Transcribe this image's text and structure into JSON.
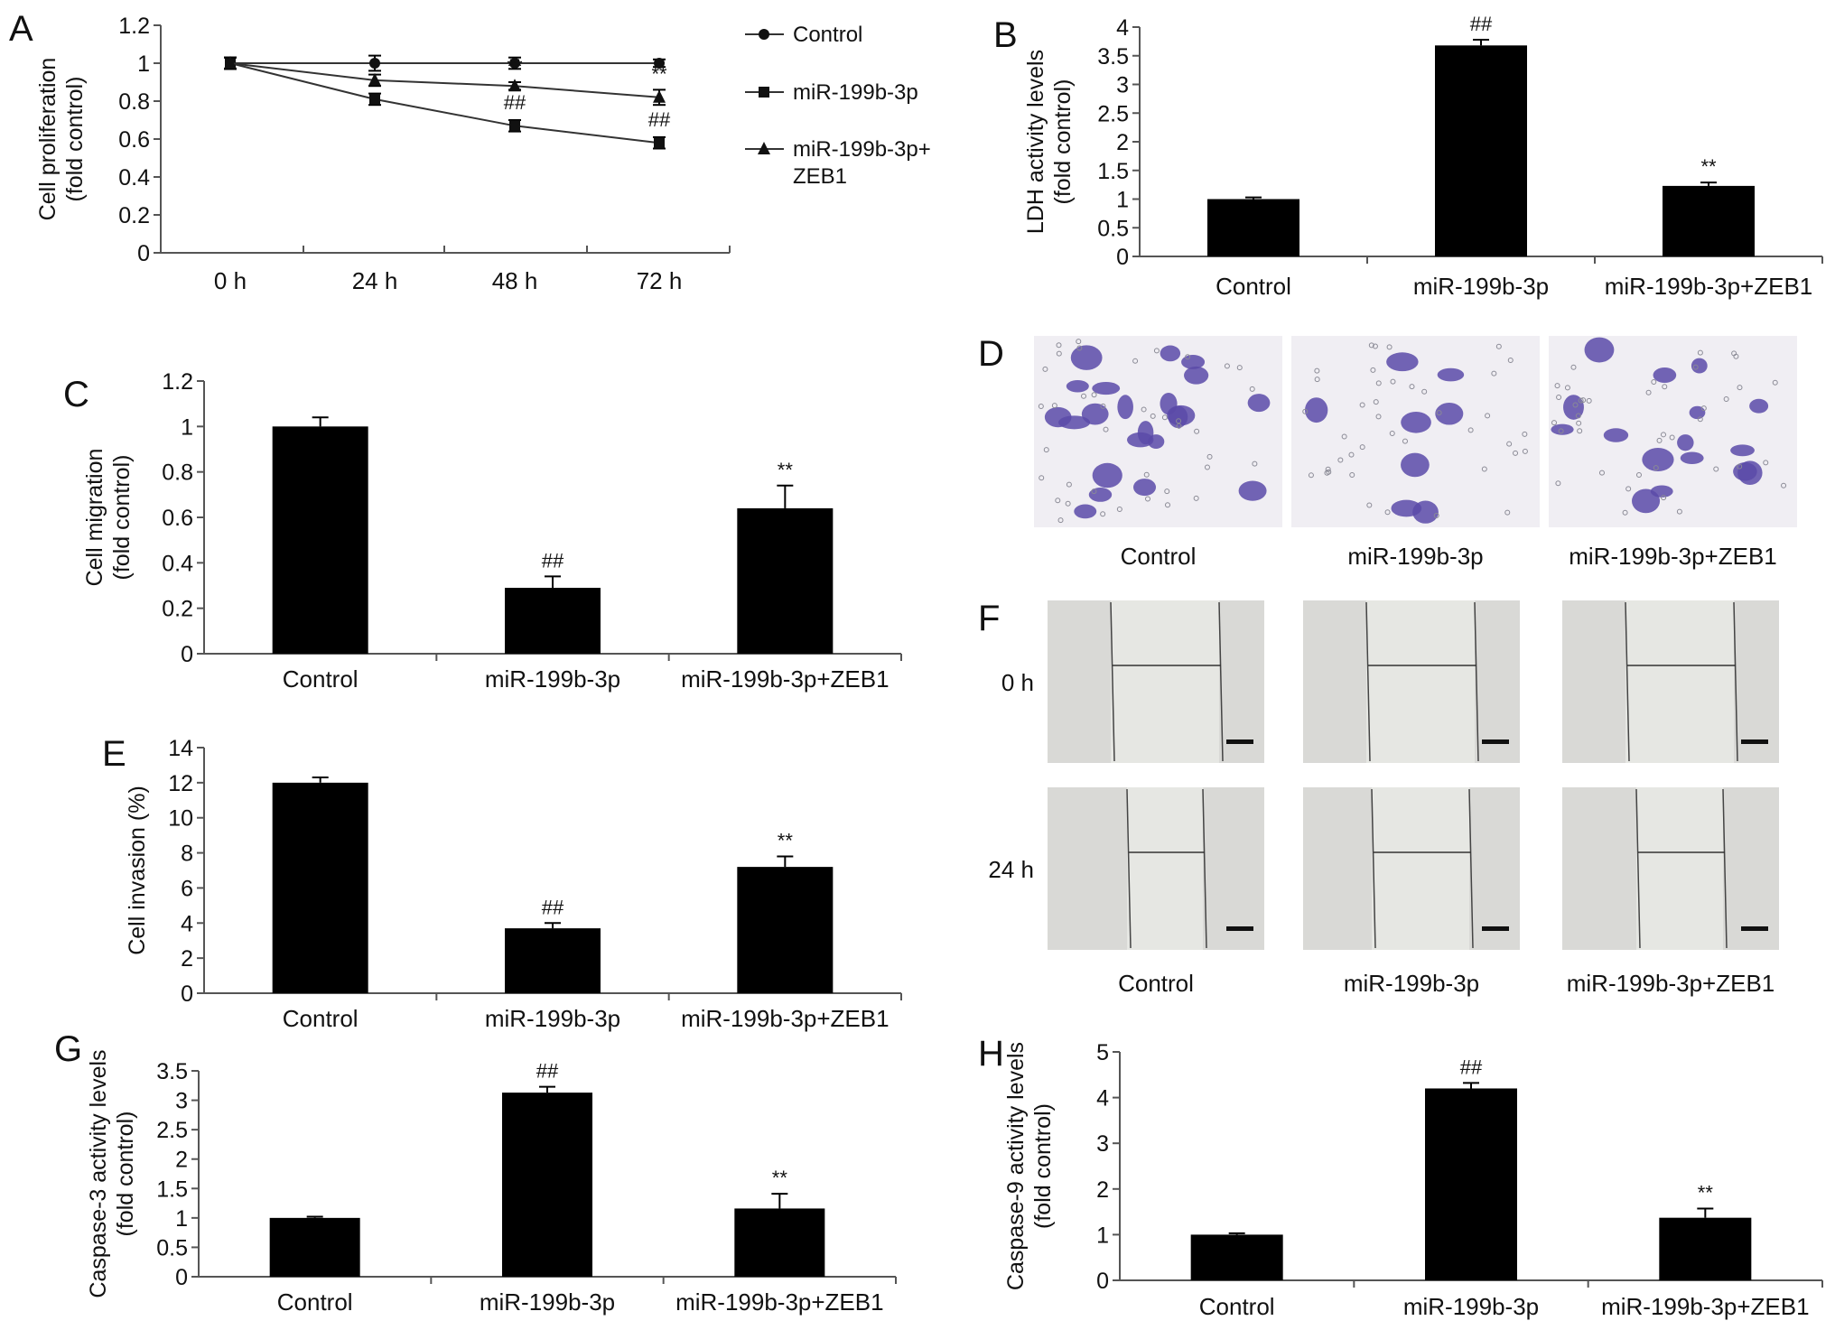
{
  "panels": {
    "A": "A",
    "B": "B",
    "C": "C",
    "D": "D",
    "E": "E",
    "F": "F",
    "G": "G",
    "H": "H"
  },
  "colors": {
    "bar": "#000000",
    "axis": "#555555",
    "stain": "#5a4aa8",
    "scratch_bg": "#d9d9d6",
    "scratch_gap": "#e6e7e3"
  },
  "chart_data": [
    {
      "id": "A",
      "type": "line",
      "ylabel": [
        "Cell proliferation",
        "(fold control)"
      ],
      "categories": [
        "0 h",
        "24 h",
        "48 h",
        "72 h"
      ],
      "yticks": [
        "0",
        "0.2",
        "0.4",
        "0.6",
        "0.8",
        "1",
        "1.2"
      ],
      "ylim": [
        0,
        1.2
      ],
      "series": [
        {
          "name": "Control",
          "marker": "circle",
          "values": [
            1.0,
            1.0,
            1.0,
            1.0
          ],
          "errors": [
            0.03,
            0.04,
            0.03,
            0.02
          ],
          "annotations": [
            "",
            "",
            "",
            ""
          ]
        },
        {
          "name": "miR-199b-3p",
          "marker": "square",
          "values": [
            1.0,
            0.81,
            0.67,
            0.58
          ],
          "errors": [
            0.03,
            0.03,
            0.03,
            0.03
          ],
          "annotations": [
            "",
            "",
            "##",
            "##"
          ]
        },
        {
          "name": [
            "miR-199b-3p+",
            "ZEB1"
          ],
          "marker": "triangle",
          "values": [
            1.0,
            0.91,
            0.88,
            0.82
          ],
          "errors": [
            0.03,
            0.03,
            0.02,
            0.04
          ],
          "annotations": [
            "",
            "",
            "**",
            "**"
          ]
        }
      ]
    },
    {
      "id": "B",
      "type": "bar",
      "ylabel": [
        "LDH activity levels",
        "(fold control)"
      ],
      "categories": [
        "Control",
        "miR-199b-3p",
        "miR-199b-3p+ZEB1"
      ],
      "values": [
        1.0,
        3.68,
        1.23
      ],
      "errors": [
        0.03,
        0.1,
        0.06
      ],
      "annotations": [
        "",
        "##",
        "**"
      ],
      "yticks": [
        "0",
        "0.5",
        "1",
        "1.5",
        "2",
        "2.5",
        "3",
        "3.5",
        "4"
      ],
      "ylim": [
        0,
        4
      ]
    },
    {
      "id": "C",
      "type": "bar",
      "ylabel": [
        "Cell migration",
        "(fold control)"
      ],
      "categories": [
        "Control",
        "miR-199b-3p",
        "miR-199b-3p+ZEB1"
      ],
      "values": [
        1.0,
        0.29,
        0.64
      ],
      "errors": [
        0.04,
        0.05,
        0.1
      ],
      "annotations": [
        "",
        "##",
        "**"
      ],
      "yticks": [
        "0",
        "0.2",
        "0.4",
        "0.6",
        "0.8",
        "1",
        "1.2"
      ],
      "ylim": [
        0,
        1.2
      ]
    },
    {
      "id": "E",
      "type": "bar",
      "ylabel": [
        "Cell invasion (%)"
      ],
      "categories": [
        "Control",
        "miR-199b-3p",
        "miR-199b-3p+ZEB1"
      ],
      "values": [
        12.0,
        3.7,
        7.2
      ],
      "errors": [
        0.3,
        0.3,
        0.6
      ],
      "annotations": [
        "",
        "##",
        "**"
      ],
      "yticks": [
        "0",
        "2",
        "4",
        "6",
        "8",
        "10",
        "12",
        "14"
      ],
      "ylim": [
        0,
        14
      ]
    },
    {
      "id": "G",
      "type": "bar",
      "ylabel": [
        "Caspase-3 activity levels",
        "(fold control)"
      ],
      "categories": [
        "Control",
        "miR-199b-3p",
        "miR-199b-3p+ZEB1"
      ],
      "values": [
        1.0,
        3.13,
        1.16
      ],
      "errors": [
        0.02,
        0.1,
        0.25
      ],
      "annotations": [
        "",
        "##",
        "**"
      ],
      "yticks": [
        "0",
        "0.5",
        "1",
        "1.5",
        "2",
        "2.5",
        "3",
        "3.5"
      ],
      "ylim": [
        0,
        3.5
      ]
    },
    {
      "id": "H",
      "type": "bar",
      "ylabel": [
        "Caspase-9 activity levels",
        "(fold control)"
      ],
      "categories": [
        "Control",
        "miR-199b-3p",
        "miR-199b-3p+ZEB1"
      ],
      "values": [
        1.0,
        4.2,
        1.37
      ],
      "errors": [
        0.03,
        0.12,
        0.2
      ],
      "annotations": [
        "",
        "##",
        "**"
      ],
      "yticks": [
        "0",
        "1",
        "2",
        "3",
        "4",
        "5"
      ],
      "ylim": [
        0,
        5
      ]
    }
  ],
  "photos": {
    "D": {
      "labels": [
        "Control",
        "miR-199b-3p",
        "miR-199b-3p+ZEB1"
      ],
      "density": [
        22,
        8,
        16
      ]
    },
    "F": {
      "labels": [
        "Control",
        "miR-199b-3p",
        "miR-199b-3p+ZEB1"
      ],
      "rows": [
        "0 h",
        "24 h"
      ],
      "gap_closure": [
        [
          0,
          0,
          0
        ],
        [
          0.3,
          0.1,
          0.2
        ]
      ]
    }
  }
}
